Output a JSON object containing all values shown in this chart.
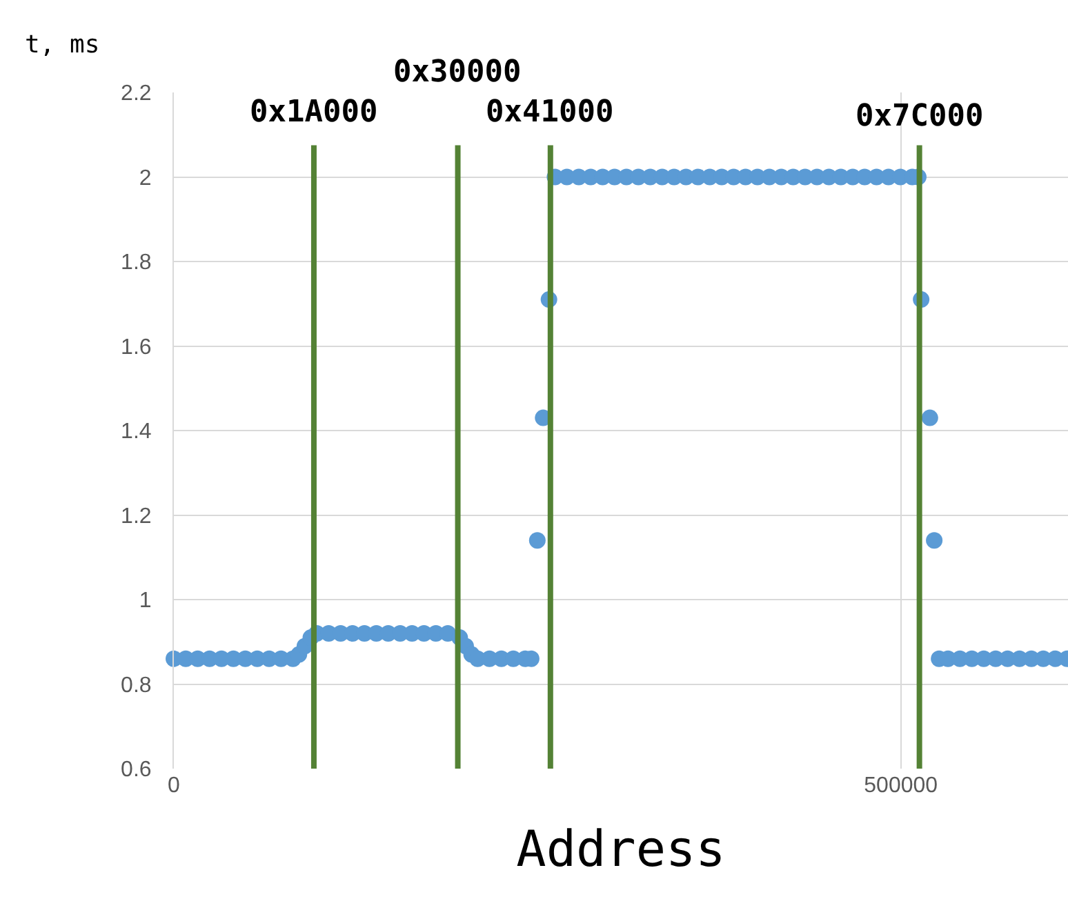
{
  "chart_data": {
    "type": "scatter",
    "xlabel": "Address",
    "ylabel": "t, ms",
    "x": [
      0,
      8192,
      16384,
      24576,
      32768,
      40960,
      49152,
      57344,
      65536,
      73728,
      81920,
      86016,
      90112,
      94208,
      98304,
      106496,
      114688,
      122880,
      131072,
      139264,
      147456,
      155648,
      163840,
      172032,
      180224,
      188416,
      196608,
      200704,
      204800,
      208896,
      217088,
      225280,
      233472,
      241664,
      245760,
      250000,
      254000,
      258000,
      262144,
      270336,
      278528,
      286720,
      294912,
      303104,
      311296,
      319488,
      327680,
      335872,
      344064,
      352256,
      360448,
      368640,
      376832,
      385024,
      393216,
      401408,
      409600,
      417792,
      425984,
      434176,
      442368,
      450560,
      458752,
      466944,
      475136,
      483328,
      491520,
      499712,
      507904,
      512000,
      514000,
      520000,
      523000,
      526336,
      532480,
      540672,
      548864,
      557056,
      565248,
      573440,
      581632,
      589824,
      598016,
      606208,
      614400
    ],
    "series": [
      {
        "color": "#5b9bd5",
        "values": [
          0.86,
          0.86,
          0.86,
          0.86,
          0.86,
          0.86,
          0.86,
          0.86,
          0.86,
          0.86,
          0.86,
          0.87,
          0.89,
          0.91,
          0.92,
          0.92,
          0.92,
          0.92,
          0.92,
          0.92,
          0.92,
          0.92,
          0.92,
          0.92,
          0.92,
          0.92,
          0.91,
          0.89,
          0.87,
          0.86,
          0.86,
          0.86,
          0.86,
          0.86,
          0.86,
          1.14,
          1.43,
          1.71,
          2.0,
          2.0,
          2.0,
          2.0,
          2.0,
          2.0,
          2.0,
          2.0,
          2.0,
          2.0,
          2.0,
          2.0,
          2.0,
          2.0,
          2.0,
          2.0,
          2.0,
          2.0,
          2.0,
          2.0,
          2.0,
          2.0,
          2.0,
          2.0,
          2.0,
          2.0,
          2.0,
          2.0,
          2.0,
          2.0,
          2.0,
          2.0,
          1.71,
          1.43,
          1.14,
          0.86,
          0.86,
          0.86,
          0.86,
          0.86,
          0.86,
          0.86,
          0.86,
          0.86,
          0.86,
          0.86,
          0.86
        ]
      }
    ],
    "xlim": [
      0,
      615000
    ],
    "xticks": [
      0,
      500000
    ],
    "ylim": [
      0.6,
      2.2
    ],
    "yticks": [
      0.6,
      0.8,
      {
        "value": 1,
        "label": "1"
      },
      1.2,
      1.4,
      1.6,
      1.8,
      {
        "value": 2,
        "label": "2"
      },
      2.2
    ],
    "ref_lines": [
      {
        "axis": "x",
        "value": 96300,
        "label": "0x1A000",
        "color": "#548235"
      },
      {
        "axis": "x",
        "value": 195300,
        "label": "0x30000",
        "color": "#548235"
      },
      {
        "axis": "x",
        "value": 259000,
        "label": "0x41000",
        "color": "#548235"
      },
      {
        "axis": "x",
        "value": 512800,
        "label": "0x7C000",
        "color": "#548235"
      }
    ],
    "grid": true,
    "marker": "circle"
  }
}
